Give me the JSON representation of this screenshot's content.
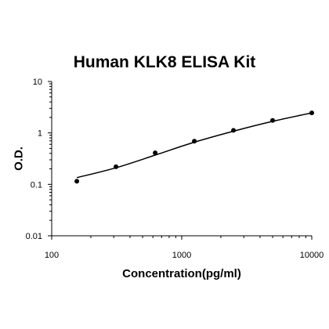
{
  "chart_data": {
    "type": "scatter",
    "title": "Human KLK8 ELISA Kit",
    "xlabel": "Concentration(pg/ml)",
    "ylabel": "O.D.",
    "x_scale": "log",
    "y_scale": "log",
    "xlim": [
      100,
      10000
    ],
    "ylim": [
      0.01,
      10
    ],
    "x_ticks": [
      "100",
      "1000",
      "10000"
    ],
    "y_ticks": [
      "10",
      "1",
      "0.1",
      "0.01"
    ],
    "grid": false,
    "legend": "none",
    "series": [
      {
        "points": [
          {
            "x": 156,
            "y": 0.115
          },
          {
            "x": 312,
            "y": 0.22
          },
          {
            "x": 625,
            "y": 0.41
          },
          {
            "x": 1250,
            "y": 0.69
          },
          {
            "x": 2500,
            "y": 1.12
          },
          {
            "x": 5000,
            "y": 1.75
          },
          {
            "x": 10000,
            "y": 2.45
          }
        ],
        "fit_curve": [
          {
            "x": 156,
            "y": 0.135
          },
          {
            "x": 312,
            "y": 0.21
          },
          {
            "x": 625,
            "y": 0.37
          },
          {
            "x": 1250,
            "y": 0.66
          },
          {
            "x": 2500,
            "y": 1.08
          },
          {
            "x": 5000,
            "y": 1.68
          },
          {
            "x": 10000,
            "y": 2.45
          }
        ]
      }
    ]
  }
}
